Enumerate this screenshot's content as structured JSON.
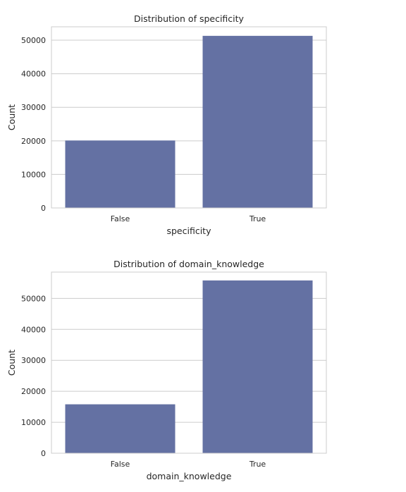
{
  "colors": {
    "bar": "#6471a3",
    "grid": "#cccccc",
    "frame": "#cccccc",
    "background": "#ffffff"
  },
  "chart_data": [
    {
      "type": "bar",
      "title": "Distribution of specificity",
      "xlabel": "specificity",
      "ylabel": "Count",
      "categories": [
        "False",
        "True"
      ],
      "values": [
        20100,
        51300
      ],
      "ylim": [
        0,
        54000
      ],
      "yticks": [
        0,
        10000,
        20000,
        30000,
        40000,
        50000
      ],
      "grid": "horizontal"
    },
    {
      "type": "bar",
      "title": "Distribution of domain_knowledge",
      "xlabel": "domain_knowledge",
      "ylabel": "Count",
      "categories": [
        "False",
        "True"
      ],
      "values": [
        15800,
        55800
      ],
      "ylim": [
        0,
        58500
      ],
      "yticks": [
        0,
        10000,
        20000,
        30000,
        40000,
        50000
      ],
      "grid": "horizontal"
    }
  ]
}
